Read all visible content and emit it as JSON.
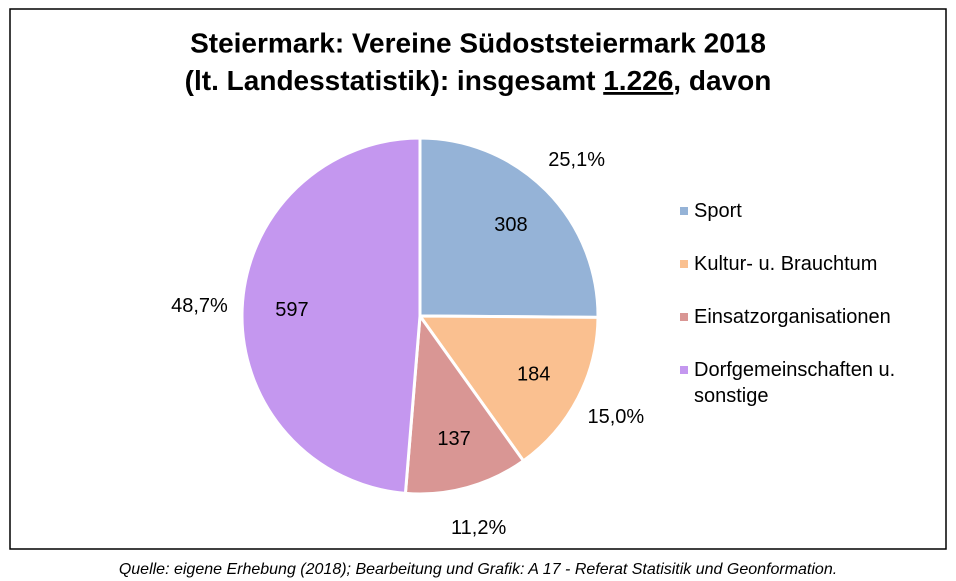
{
  "chart_data": {
    "type": "pie",
    "title": {
      "line1": "Steiermark: Vereine Südoststeiermark 2018",
      "line2_before": "(lt. Landesstatistik): insgesamt",
      "total": "1.226",
      "line2_after": ", davon"
    },
    "categories": [
      "Sport",
      "Kultur- u. Brauchtum",
      "Einsatzorganisationen",
      "Dorfgemeinschaften u. sonstige"
    ],
    "values": [
      308,
      184,
      137,
      597
    ],
    "percentages": [
      25.1,
      15.0,
      11.2,
      48.7
    ],
    "percentage_labels": [
      "25,1%",
      "15,0%",
      "11,2%",
      "48,7%"
    ],
    "colors": [
      "#95b3d7",
      "#fac090",
      "#d99694",
      "#c497ef"
    ],
    "legend": "right",
    "source": "Quelle: eigene Erhebung (2018); Bearbeitung und Grafik: A 17 - Referat Statisitik und Geonformation."
  }
}
